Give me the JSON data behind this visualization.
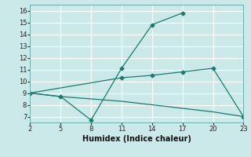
{
  "xlabel": "Humidex (Indice chaleur)",
  "background_color": "#cce9e9",
  "grid_color": "#ffffff",
  "line_color": "#1a7a6e",
  "xlim": [
    2,
    23
  ],
  "ylim": [
    6.5,
    16.5
  ],
  "xticks": [
    2,
    5,
    8,
    11,
    14,
    17,
    20,
    23
  ],
  "yticks": [
    7,
    8,
    9,
    10,
    11,
    12,
    13,
    14,
    15,
    16
  ],
  "line1_x": [
    2,
    5,
    8,
    11,
    14,
    17
  ],
  "line1_y": [
    9.0,
    8.7,
    6.7,
    11.1,
    14.8,
    15.8
  ],
  "line2_x": [
    2,
    11,
    14,
    17,
    20,
    23
  ],
  "line2_y": [
    9.0,
    10.3,
    10.5,
    10.8,
    11.1,
    7.0
  ],
  "line3_x": [
    2,
    5,
    11,
    17,
    20,
    23
  ],
  "line3_y": [
    9.0,
    8.7,
    8.3,
    7.7,
    7.4,
    7.0
  ],
  "xlabel_fontsize": 7,
  "tick_fontsize": 6,
  "linewidth": 0.9,
  "marker": "D",
  "markersize": 2.5
}
